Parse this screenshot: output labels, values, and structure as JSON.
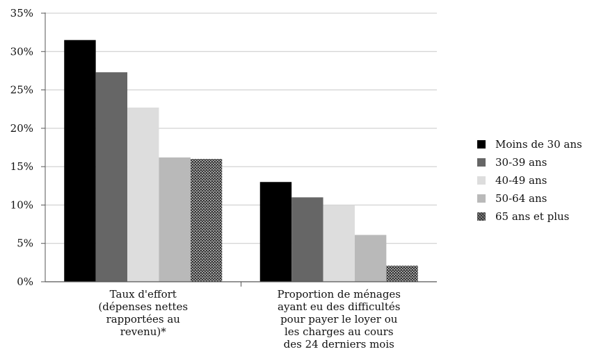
{
  "chart_data": {
    "type": "bar",
    "categories": [
      [
        "Taux d'effort",
        "(dépenses nettes",
        "rapportées au",
        "revenu)*"
      ],
      [
        "Proportion de ménages",
        "ayant eu des difficultés",
        "pour payer le loyer ou",
        "les charges au cours",
        "des 24 derniers mois"
      ]
    ],
    "series": [
      {
        "name": "Moins de 30 ans",
        "color": "#000000",
        "pattern": "solid",
        "values": [
          31.5,
          13.0
        ]
      },
      {
        "name": "30-39 ans",
        "color": "#666666",
        "pattern": "solid",
        "values": [
          27.3,
          11.0
        ]
      },
      {
        "name": "40-49 ans",
        "color": "#dddddd",
        "pattern": "solid",
        "values": [
          22.7,
          10.0
        ]
      },
      {
        "name": "50-64 ans",
        "color": "#b9b9b9",
        "pattern": "solid",
        "values": [
          16.2,
          6.1
        ]
      },
      {
        "name": "65 ans et plus",
        "color": "#555555",
        "pattern": "speckled",
        "values": [
          16.0,
          2.1
        ]
      }
    ],
    "yticks": [
      "0%",
      "5%",
      "10%",
      "15%",
      "20%",
      "25%",
      "30%",
      "35%"
    ],
    "ylim": [
      0,
      35
    ],
    "grid": true,
    "legend_position": "right"
  }
}
